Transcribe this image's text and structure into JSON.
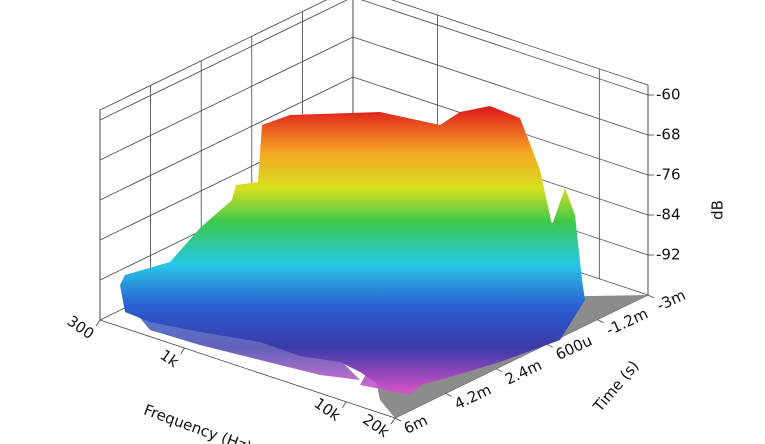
{
  "chart_data": {
    "type": "waterfall",
    "x_label": "Frequency (Hz)",
    "xscale": "log",
    "xlim": [
      300,
      20000
    ],
    "xticks": [
      {
        "value": 300,
        "label": "300"
      },
      {
        "value": 1000,
        "label": "1k"
      },
      {
        "value": 10000,
        "label": "10k"
      },
      {
        "value": 20000,
        "label": "20k"
      }
    ],
    "y_label": "Time (s)",
    "ylim": [
      0.006,
      -0.003
    ],
    "yticks": [
      {
        "value": -0.003,
        "label": "-3m"
      },
      {
        "value": -0.0012,
        "label": "-1.2m"
      },
      {
        "value": 0.0006,
        "label": "600u"
      },
      {
        "value": 0.0024,
        "label": "2.4m"
      },
      {
        "value": 0.0042,
        "label": "4.2m"
      },
      {
        "value": 0.006,
        "label": "6m"
      }
    ],
    "z_label": "dB",
    "zlim": [
      -100,
      -58
    ],
    "zticks": [
      -60,
      -68,
      -76,
      -84,
      -92
    ],
    "grid": true
  }
}
